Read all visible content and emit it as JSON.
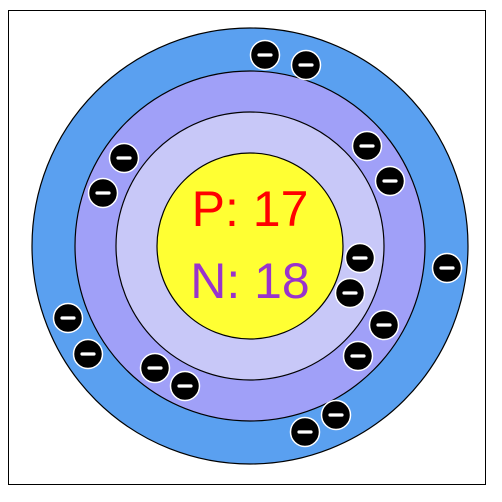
{
  "nucleus": {
    "protons_label": "P: 17",
    "neutrons_label": "N: 18",
    "protons": 17,
    "neutrons": 18
  },
  "shells": [
    {
      "shell": 3,
      "electron_count": 7,
      "color": "#5aa0f0"
    },
    {
      "shell": 2,
      "electron_count": 8,
      "color": "#a0a0f8"
    },
    {
      "shell": 1,
      "electron_count": 2,
      "color": "#c8c8f8"
    }
  ],
  "electron_symbol": "−",
  "colors": {
    "nucleus_fill": "#ffff33",
    "proton_text": "#ff0000",
    "neutron_text": "#9933cc",
    "electron_fill": "#000000",
    "outline": "#000000"
  },
  "icons": {
    "electron": "electron-minus-icon"
  }
}
